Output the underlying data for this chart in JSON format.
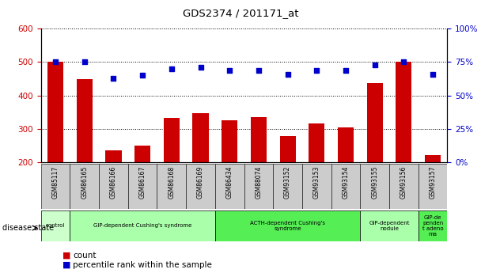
{
  "title": "GDS2374 / 201171_at",
  "samples": [
    "GSM85117",
    "GSM86165",
    "GSM86166",
    "GSM86167",
    "GSM86168",
    "GSM86169",
    "GSM86434",
    "GSM88074",
    "GSM93152",
    "GSM93153",
    "GSM93154",
    "GSM93155",
    "GSM93156",
    "GSM93157"
  ],
  "counts": [
    500,
    450,
    235,
    250,
    332,
    348,
    326,
    335,
    278,
    316,
    305,
    438,
    500,
    222
  ],
  "percentiles": [
    75,
    75,
    63,
    65,
    70,
    71,
    69,
    69,
    66,
    69,
    69,
    73,
    75,
    66
  ],
  "bar_color": "#cc0000",
  "dot_color": "#0000cc",
  "ylim_left": [
    200,
    600
  ],
  "ylim_right": [
    0,
    100
  ],
  "yticks_left": [
    200,
    300,
    400,
    500,
    600
  ],
  "yticks_right": [
    0,
    25,
    50,
    75,
    100
  ],
  "disease_groups": [
    {
      "label": "control",
      "start": 0,
      "end": 1,
      "color": "#ccffcc"
    },
    {
      "label": "GIP-dependent Cushing's syndrome",
      "start": 1,
      "end": 6,
      "color": "#aaffaa"
    },
    {
      "label": "ACTH-dependent Cushing's\nsyndrome",
      "start": 6,
      "end": 11,
      "color": "#55ee55"
    },
    {
      "label": "GIP-dependent\nnodule",
      "start": 11,
      "end": 13,
      "color": "#aaffaa"
    },
    {
      "label": "GIP-de\npenden\nt adeno\nma",
      "start": 13,
      "end": 14,
      "color": "#55ee55"
    }
  ],
  "disease_state_label": "disease state",
  "legend_count": "count",
  "legend_percentile": "percentile rank within the sample",
  "background_color": "#ffffff",
  "tick_label_color_left": "#cc0000",
  "tick_label_color_right": "#0000cc",
  "xticklabel_bg": "#cccccc"
}
